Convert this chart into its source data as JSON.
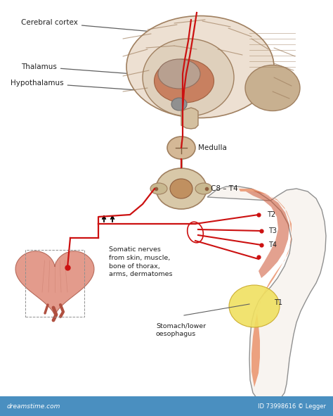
{
  "bg_color": "#ffffff",
  "brain_outer_color": "#ede0d2",
  "brain_inner_color": "#d9c8b4",
  "brain_deep_color": "#c8b09a",
  "thalamus_color": "#c97070",
  "brainstem_color": "#d4b896",
  "cerebellum_color": "#c8b090",
  "nerve_color": "#cc1111",
  "body_outline_color": "#909090",
  "body_fill_color": "#f8f4f0",
  "arm_orange_color": "#e8855a",
  "arm_dark_color": "#cc5533",
  "stomach_color": "#f0e060",
  "heart_color": "#d97060",
  "heart_outline_color": "#b05040",
  "label_color": "#222222",
  "line_color": "#606060",
  "footer_bg": "#4a8fc0",
  "footer_text": "ID 73998616 © Legger",
  "watermark": "dreamstime.com",
  "labels": {
    "cerebral_cortex": "Cerebral cortex",
    "thalamus": "Thalamus",
    "hypothalamus": "Hypothalamus",
    "medulla": "Medulla",
    "c8_t4": "C8 – T4",
    "somatic": "Somatic nerves\nfrom skin, muscle,\nbone of thorax,\narms, dermatomes",
    "stomach": "Stomach/lower\noesophagus",
    "t1": "T1",
    "t2": "T2",
    "t3": "T3",
    "t4": "T4"
  }
}
